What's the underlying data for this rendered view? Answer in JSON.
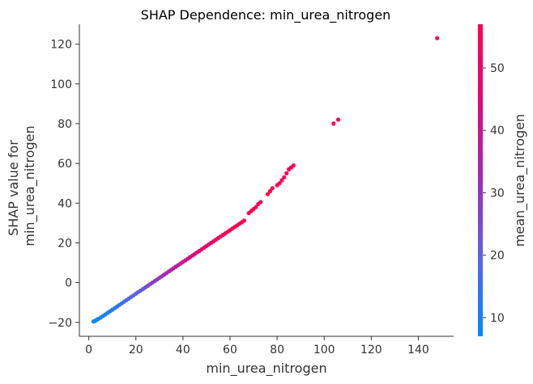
{
  "chart_data": {
    "type": "scatter",
    "title": "SHAP Dependence: min_urea_nitrogen",
    "xlabel": "min_urea_nitrogen",
    "ylabel": [
      "SHAP value for",
      "min_urea_nitrogen"
    ],
    "xlim": [
      -4,
      155
    ],
    "ylim": [
      -27,
      130
    ],
    "xticks": [
      0,
      20,
      40,
      60,
      80,
      100,
      120,
      140
    ],
    "yticks": [
      -20,
      0,
      20,
      40,
      60,
      80,
      100,
      120
    ],
    "grid": false,
    "colorbar": {
      "label": "mean_urea_nitrogen",
      "range": [
        7,
        57
      ],
      "ticks": [
        10,
        20,
        30,
        40,
        50
      ],
      "colormap": [
        "#008afb",
        "#5d63e6",
        "#a02db3",
        "#e0087d",
        "#ff0051"
      ]
    },
    "points": [
      [
        2,
        -19.5,
        7
      ],
      [
        2.5,
        -19.3,
        7.5
      ],
      [
        3,
        -19,
        8
      ],
      [
        3.5,
        -18.6,
        8.5
      ],
      [
        4,
        -18.3,
        9
      ],
      [
        5,
        -17.6,
        9.5
      ],
      [
        6,
        -16.8,
        10
      ],
      [
        7,
        -16,
        10.5
      ],
      [
        8,
        -15.2,
        11
      ],
      [
        9,
        -14.4,
        11.5
      ],
      [
        10,
        -13.6,
        12
      ],
      [
        11,
        -12.8,
        12.5
      ],
      [
        12,
        -12,
        13
      ],
      [
        13,
        -11.2,
        14
      ],
      [
        14,
        -10.4,
        15
      ],
      [
        15,
        -9.6,
        16
      ],
      [
        16,
        -8.8,
        16.5
      ],
      [
        17,
        -8,
        17
      ],
      [
        18,
        -7.2,
        18
      ],
      [
        19,
        -6.4,
        19
      ],
      [
        20,
        -5.6,
        20
      ],
      [
        21,
        -4.8,
        21
      ],
      [
        22,
        -4,
        22
      ],
      [
        23,
        -3.2,
        23
      ],
      [
        24,
        -2.4,
        24
      ],
      [
        25,
        -1.6,
        25
      ],
      [
        26,
        -0.8,
        26
      ],
      [
        27,
        0,
        27
      ],
      [
        28,
        0.8,
        28
      ],
      [
        29,
        1.6,
        29
      ],
      [
        30,
        2.4,
        30
      ],
      [
        31,
        3.2,
        31
      ],
      [
        32,
        4,
        32
      ],
      [
        33,
        4.8,
        33
      ],
      [
        34,
        5.6,
        34
      ],
      [
        35,
        6.4,
        35
      ],
      [
        36,
        7.2,
        36
      ],
      [
        37,
        8,
        37
      ],
      [
        38,
        8.8,
        38
      ],
      [
        39,
        9.6,
        39
      ],
      [
        40,
        10.4,
        40
      ],
      [
        41,
        11.2,
        41
      ],
      [
        42,
        12,
        42
      ],
      [
        43,
        12.8,
        43
      ],
      [
        44,
        13.6,
        44
      ],
      [
        45,
        14.4,
        45
      ],
      [
        46,
        15.2,
        46
      ],
      [
        47,
        16,
        47
      ],
      [
        48,
        16.8,
        48
      ],
      [
        49,
        17.6,
        49
      ],
      [
        50,
        18.4,
        50
      ],
      [
        51,
        19.2,
        51
      ],
      [
        52,
        20,
        52
      ],
      [
        53,
        20.8,
        53
      ],
      [
        54,
        21.6,
        54
      ],
      [
        55,
        22.4,
        55
      ],
      [
        56,
        23.2,
        56
      ],
      [
        57,
        24,
        56
      ],
      [
        58,
        24.8,
        56
      ],
      [
        59,
        25.6,
        57
      ],
      [
        60,
        26.4,
        57
      ],
      [
        61,
        27.2,
        57
      ],
      [
        62,
        28,
        57
      ],
      [
        63,
        28.8,
        57
      ],
      [
        64,
        29.6,
        57
      ],
      [
        65,
        30.4,
        57
      ],
      [
        66,
        31.2,
        57
      ],
      [
        68,
        35,
        57
      ],
      [
        69,
        36,
        57
      ],
      [
        70,
        37,
        57
      ],
      [
        71,
        38,
        57
      ],
      [
        72,
        39.5,
        57
      ],
      [
        73,
        40.5,
        57
      ],
      [
        76,
        44.5,
        57
      ],
      [
        77,
        46,
        57
      ],
      [
        78,
        47.5,
        57
      ],
      [
        80,
        49,
        57
      ],
      [
        81,
        50,
        57
      ],
      [
        82,
        51.5,
        57
      ],
      [
        83,
        53,
        57
      ],
      [
        84,
        55,
        57
      ],
      [
        85,
        57,
        57
      ],
      [
        86,
        58,
        57
      ],
      [
        87,
        59,
        57
      ],
      [
        104,
        80,
        57
      ],
      [
        106,
        82,
        57
      ],
      [
        148,
        123,
        57
      ]
    ]
  }
}
